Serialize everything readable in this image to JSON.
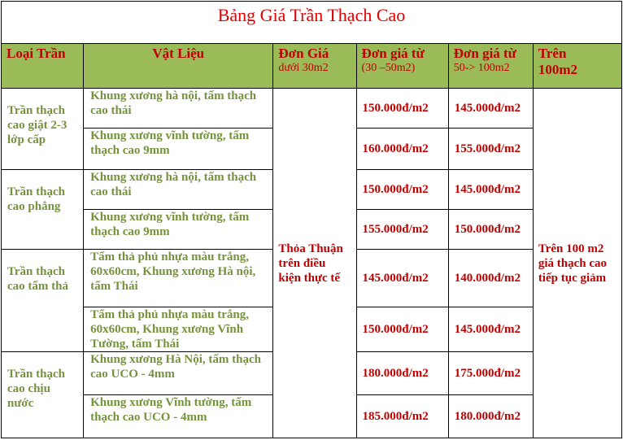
{
  "title": "Bảng Giá Trần Thạch Cao",
  "headers": {
    "type": "Loại Trần",
    "material": "Vật Liệu",
    "p1": "Đơn Giá",
    "p1_sub": "dưới 30m2",
    "p2": "Đơn giá từ",
    "p2_sub": "(30 –50m2)",
    "p3": "Đơn giá từ",
    "p3_sub": "50-> 100m2",
    "p4": "Trên",
    "p4_b": "100m2"
  },
  "negotiate": "Thỏa Thuận trên điều kiện thực tế",
  "over100": "Trên 100 m2 giá thạch cao tiếp tục giảm",
  "groups": [
    {
      "type": "Trần thạch cao giật 2-3 lớp cấp",
      "rows": [
        {
          "material": "Khung xương hà nội, tấm thạch cao thái",
          "p2": "150.000đ/m2",
          "p3": "145.000đ/m2"
        },
        {
          "material": "Khung xương vĩnh tường, tấm thạch cao 9mm",
          "p2": "160.000đ/m2",
          "p3": "155.000đ/m2"
        }
      ]
    },
    {
      "type": "Trần thạch cao phẳng",
      "rows": [
        {
          "material": "Khung xương hà nội, tấm thạch cao thái",
          "p2": "150.000đ/m2",
          "p3": "145.000đ/m2"
        },
        {
          "material": "Khung xương vĩnh tường, tấm thạch cao 9mm",
          "p2": "155.000đ/m2",
          "p3": "150.000đ/m2"
        }
      ]
    },
    {
      "type": "Trần thạch cao tấm thả",
      "rows": [
        {
          "material": "Tấm thả phủ nhựa màu trắng, 60x60cm, Khung xương Hà nội, tấm Thái",
          "p2": "145.000đ/m2",
          "p3": "140.000đ/m2"
        },
        {
          "material": "Tấm thả phủ nhựa màu trắng, 60x60cm, Khung xương Vĩnh Tường, tấm Thái",
          "p2": "150.000đ/m2",
          "p3": "145.000đ/m2"
        }
      ]
    },
    {
      "type": "Trần thạch cao chịu nước",
      "rows": [
        {
          "material": "Khung xương Hà Nội, tấm thạch cao UCO - 4mm",
          "p2": "180.000đ/m2",
          "p3": "175.000đ/m2"
        },
        {
          "material": "Khung xương Vĩnh tường, tấm thạch cao UCO - 4mm",
          "p2": "185.000đ/m2",
          "p3": "180.000đ/m2"
        }
      ]
    }
  ]
}
